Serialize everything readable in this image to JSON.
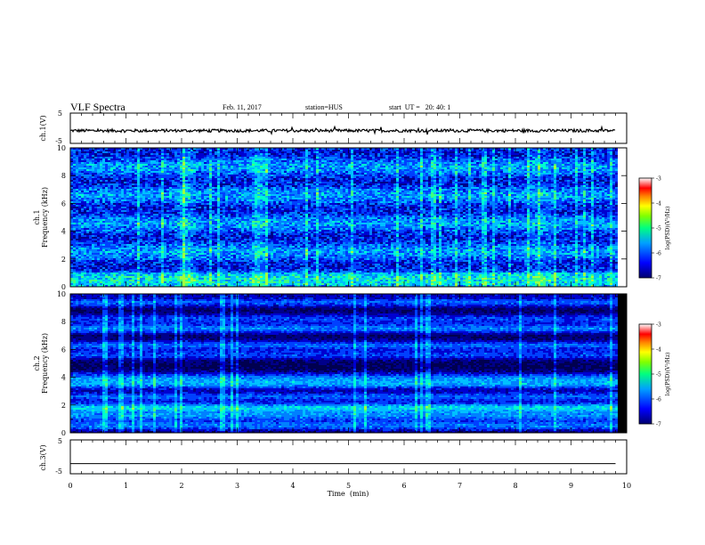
{
  "header": {
    "title": "VLF Spectra",
    "date": "Feb. 11, 2017",
    "station": "station=HUS",
    "start": "start  UT =   20: 40: 1"
  },
  "chart_data": [
    {
      "type": "line",
      "panel": "ch1-waveform",
      "ylabel": "ch.1(V)",
      "yticks": [
        "5",
        "-5"
      ],
      "ylim": [
        -5,
        5
      ],
      "xlim": [
        0,
        10
      ],
      "data_extent_min": 9.8,
      "level": -0.8,
      "noise_amplitude": 0.5
    },
    {
      "type": "heatmap",
      "panel": "ch1-spectrogram",
      "ylabel_line1": "ch.1",
      "ylabel_line2": "Frequency (kHz)",
      "ylim": [
        0,
        10
      ],
      "yticks": [
        "0",
        "2",
        "4",
        "6",
        "8",
        "10"
      ],
      "xlim": [
        0,
        10
      ],
      "colorbar": {
        "ticks": [
          "-3",
          "-4",
          "-5",
          "-6",
          "-7"
        ],
        "label": "log(PSD)(V²/Hz)"
      },
      "colormap": [
        "#000080",
        "#0000ff",
        "#0080ff",
        "#00ffff",
        "#80ff80",
        "#ffff00",
        "#ff8000",
        "#ff0000",
        "#ffffff"
      ]
    },
    {
      "type": "heatmap",
      "panel": "ch2-spectrogram",
      "ylabel_line1": "ch.2",
      "ylabel_line2": "Frequency (kHz)",
      "ylim": [
        0,
        10
      ],
      "yticks": [
        "0",
        "2",
        "4",
        "6",
        "8",
        "10"
      ],
      "xlim": [
        0,
        10
      ],
      "colorbar": {
        "ticks": [
          "-3",
          "-4",
          "-5",
          "-6",
          "-7"
        ],
        "label": "log(PSD)(V²/Hz)"
      },
      "colormap": [
        "#000080",
        "#0000ff",
        "#0080ff",
        "#00ffff",
        "#80ff80",
        "#ffff00",
        "#ff8000",
        "#ff0000",
        "#ffffff"
      ]
    },
    {
      "type": "line",
      "panel": "ch3-waveform",
      "ylabel": "ch.3(V)",
      "yticks": [
        "5",
        "-5"
      ],
      "ylim": [
        -5,
        5
      ],
      "xlim": [
        0,
        10
      ],
      "data_extent_min": 9.8,
      "level": -2.0,
      "noise_amplitude": 0
    }
  ],
  "xaxis": {
    "ticks": [
      "0",
      "1",
      "2",
      "3",
      "4",
      "5",
      "6",
      "7",
      "8",
      "9",
      "10"
    ],
    "label": "Time  (min)"
  }
}
